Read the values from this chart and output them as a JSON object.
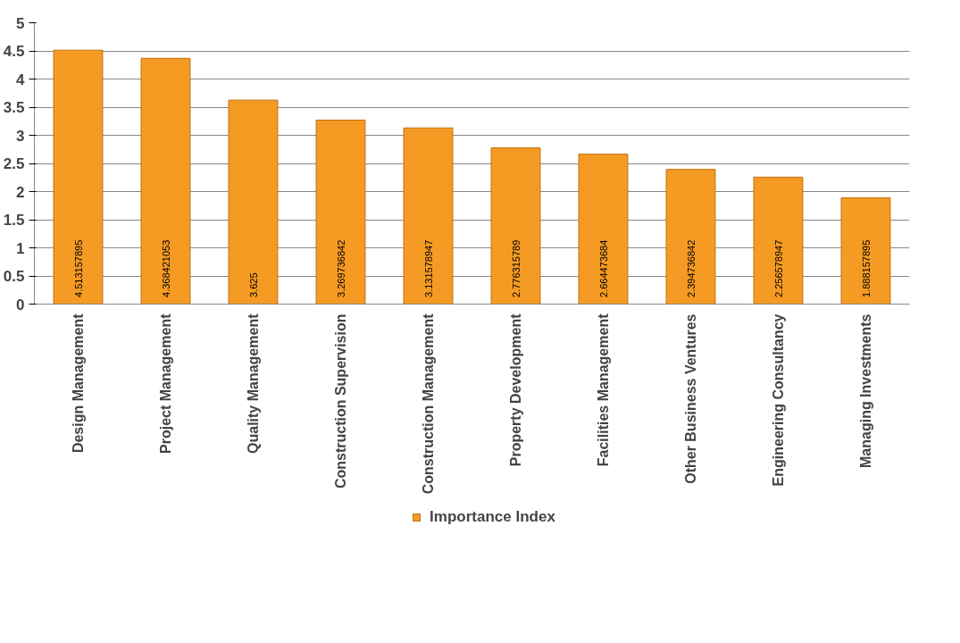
{
  "chart_data": {
    "type": "bar",
    "categories": [
      "Design Management",
      "Project Management",
      "Quality Management",
      "Construction Supervision",
      "Construction Management",
      "Property Development",
      "Facilities Management",
      "Other Business Ventures",
      "Engineering Consultancy",
      "Managing Investments"
    ],
    "series": [
      {
        "name": "Importance Index",
        "color": "#f59a23",
        "values": [
          4.513157895,
          4.368421053,
          3.625,
          3.269736842,
          3.131578947,
          2.776315789,
          2.664473684,
          2.394736842,
          2.256578947,
          1.888157895
        ]
      }
    ],
    "ylim": [
      0,
      5
    ],
    "yticks": [
      0,
      0.5,
      1,
      1.5,
      2,
      2.5,
      3,
      3.5,
      4,
      4.5,
      5
    ],
    "grid": "y",
    "legend": "bottom",
    "data_labels": true
  }
}
